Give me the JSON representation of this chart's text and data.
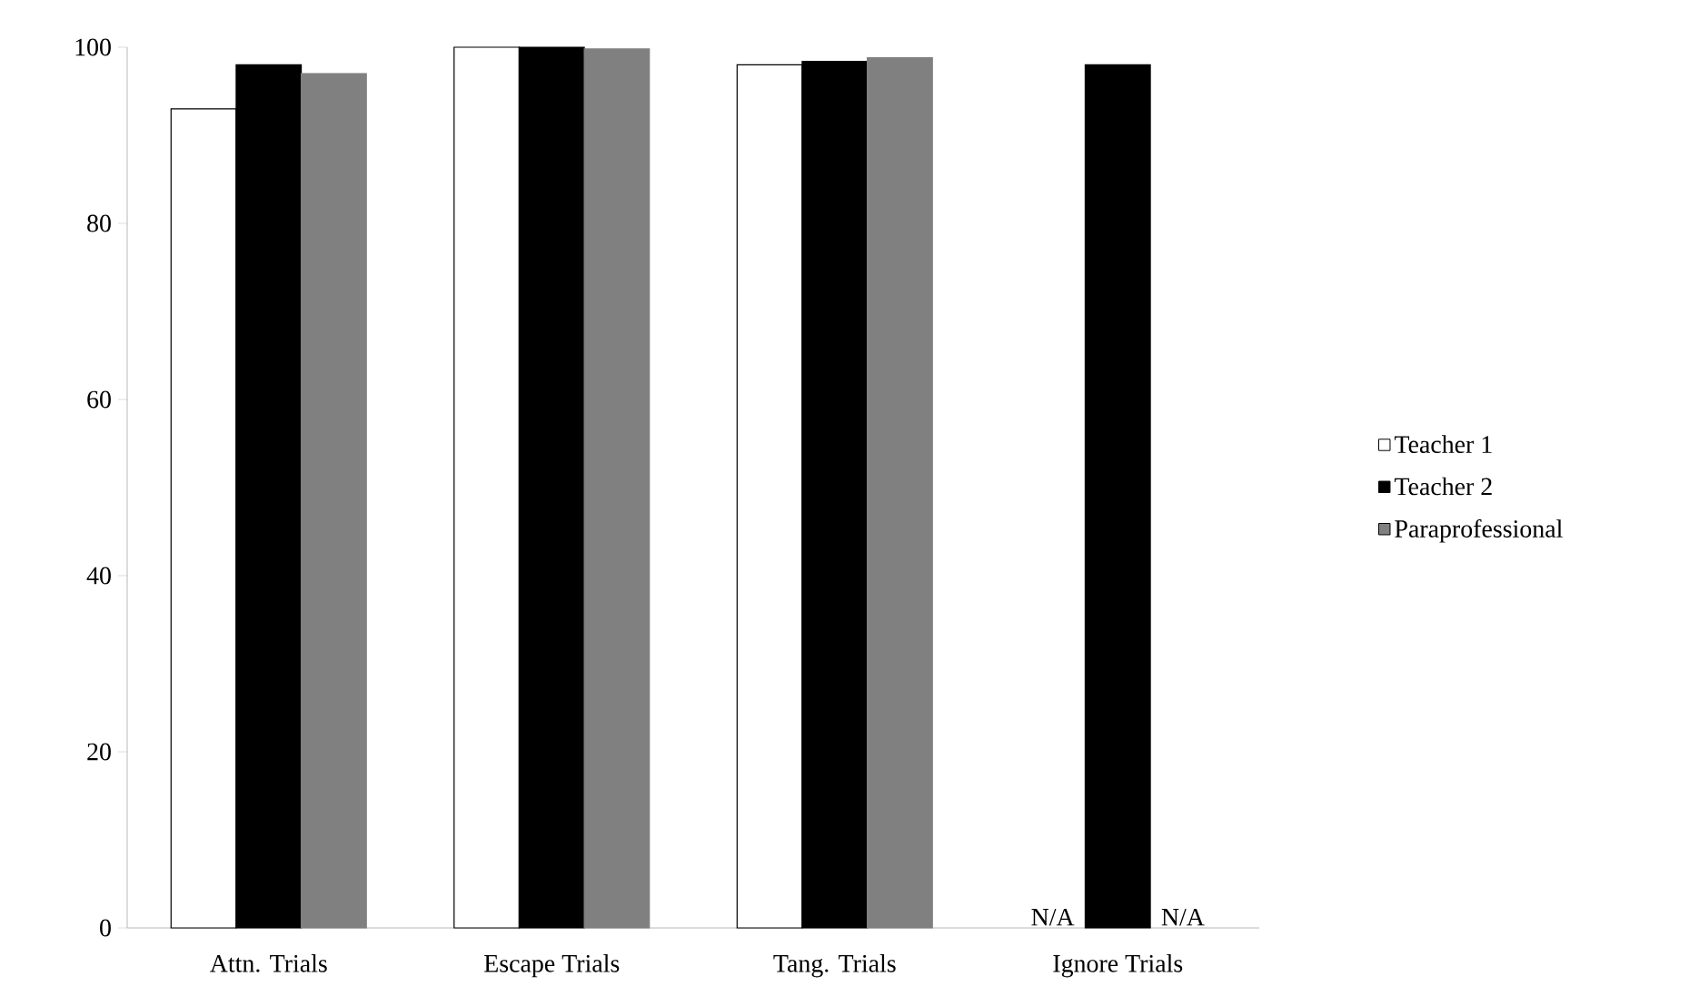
{
  "chart_data": {
    "type": "bar",
    "categories": [
      "Attn. Trials",
      "Escape Trials",
      "Tang. Trials",
      "Ignore Trials"
    ],
    "series": [
      {
        "name": "Teacher 1",
        "color": "#ffffff",
        "values": [
          93,
          100,
          98,
          null
        ]
      },
      {
        "name": "Teacher 2",
        "color": "#000000",
        "values": [
          98,
          100,
          98.4,
          98
        ]
      },
      {
        "name": "Paraprofessional",
        "color": "#808080",
        "values": [
          97,
          99.8,
          98.8,
          null
        ]
      }
    ],
    "annotations": [
      {
        "text": "N/A",
        "x": "Ignore Trials",
        "y": 0
      },
      {
        "text": "N/A",
        "x": "Ignore Trials",
        "y": 0
      }
    ],
    "ylim": [
      0,
      100
    ],
    "yticks": [
      0,
      20,
      40,
      60,
      80,
      100
    ],
    "grid": false,
    "legend": "right"
  }
}
